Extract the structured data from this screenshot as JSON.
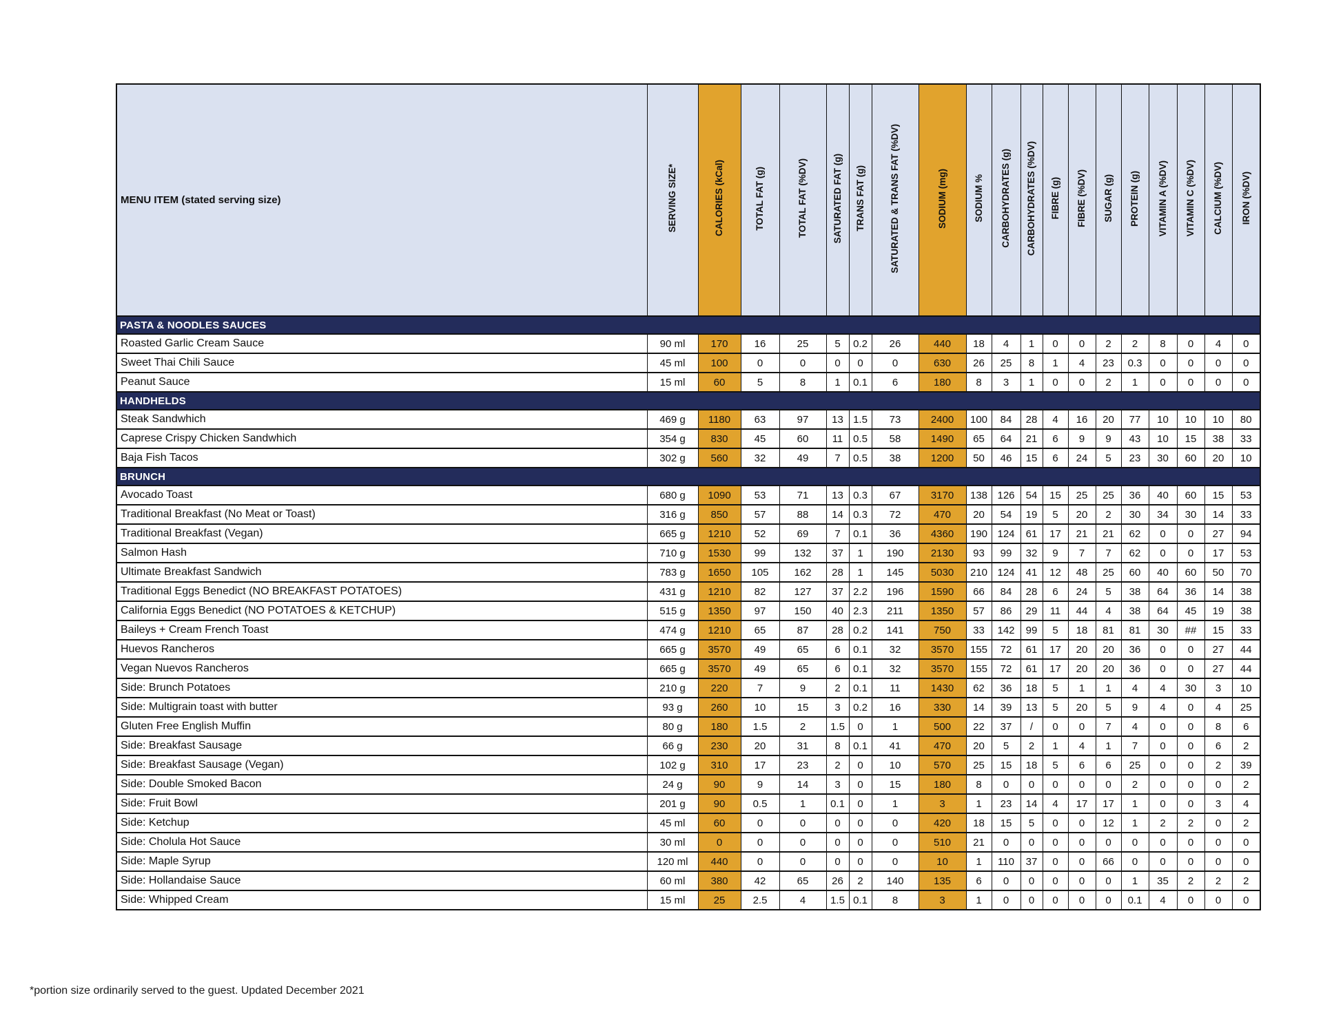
{
  "table": {
    "menu_item_header": "MENU ITEM (stated serving size)",
    "columns": [
      "SERVING SIZE*",
      "CALORIES (kCal)",
      "TOTAL FAT (g)",
      "TOTAL FAT (%DV)",
      "SATURATED FAT (g)",
      "TRANS FAT (g)",
      "SATURATED & TRANS FAT (%DV)",
      "SODIUM (mg)",
      "SODIUM %",
      "CARBOHYDRATES (g)",
      "CARBOHYDRATES (%DV)",
      "FIBRE (g)",
      "FIBRE (%DV)",
      "SUGAR (g)",
      "PROTEIN (g)",
      "VITAMIN A (%DV)",
      "VITAMIN C (%DV)",
      "CALCIUM (%DV)",
      "IRON (%DV)"
    ],
    "sections": [
      {
        "name": "PASTA & NOODLES SAUCES",
        "rows": [
          {
            "item": "Roasted Garlic Cream Sauce",
            "values": [
              "90 ml",
              "170",
              "16",
              "25",
              "5",
              "0.2",
              "26",
              "440",
              "18",
              "4",
              "1",
              "0",
              "0",
              "2",
              "2",
              "8",
              "0",
              "4",
              "0"
            ]
          },
          {
            "item": "Sweet Thai Chili Sauce",
            "values": [
              "45 ml",
              "100",
              "0",
              "0",
              "0",
              "0",
              "0",
              "630",
              "26",
              "25",
              "8",
              "1",
              "4",
              "23",
              "0.3",
              "0",
              "0",
              "0",
              "0"
            ]
          },
          {
            "item": "Peanut Sauce",
            "values": [
              "15 ml",
              "60",
              "5",
              "8",
              "1",
              "0.1",
              "6",
              "180",
              "8",
              "3",
              "1",
              "0",
              "0",
              "2",
              "1",
              "0",
              "0",
              "0",
              "0"
            ]
          }
        ]
      },
      {
        "name": "HANDHELDS",
        "rows": [
          {
            "item": "Steak Sandwhich",
            "values": [
              "469 g",
              "1180",
              "63",
              "97",
              "13",
              "1.5",
              "73",
              "2400",
              "100",
              "84",
              "28",
              "4",
              "16",
              "20",
              "77",
              "10",
              "10",
              "10",
              "80"
            ]
          },
          {
            "item": "Caprese Crispy Chicken Sandwhich",
            "values": [
              "354 g",
              "830",
              "45",
              "60",
              "11",
              "0.5",
              "58",
              "1490",
              "65",
              "64",
              "21",
              "6",
              "9",
              "9",
              "43",
              "10",
              "15",
              "38",
              "33"
            ]
          },
          {
            "item": "Baja Fish Tacos",
            "values": [
              "302 g",
              "560",
              "32",
              "49",
              "7",
              "0.5",
              "38",
              "1200",
              "50",
              "46",
              "15",
              "6",
              "24",
              "5",
              "23",
              "30",
              "60",
              "20",
              "10"
            ]
          }
        ]
      },
      {
        "name": "BRUNCH",
        "rows": [
          {
            "item": "Avocado Toast",
            "values": [
              "680 g",
              "1090",
              "53",
              "71",
              "13",
              "0.3",
              "67",
              "3170",
              "138",
              "126",
              "54",
              "15",
              "25",
              "25",
              "36",
              "40",
              "60",
              "15",
              "53"
            ]
          },
          {
            "item": "Traditional Breakfast (No Meat or Toast)",
            "values": [
              "316 g",
              "850",
              "57",
              "88",
              "14",
              "0.3",
              "72",
              "470",
              "20",
              "54",
              "19",
              "5",
              "20",
              "2",
              "30",
              "34",
              "30",
              "14",
              "33"
            ]
          },
          {
            "item": "Traditional Breakfast (Vegan)",
            "values": [
              "665 g",
              "1210",
              "52",
              "69",
              "7",
              "0.1",
              "36",
              "4360",
              "190",
              "124",
              "61",
              "17",
              "21",
              "21",
              "62",
              "0",
              "0",
              "27",
              "94"
            ]
          },
          {
            "item": "Salmon Hash",
            "values": [
              "710 g",
              "1530",
              "99",
              "132",
              "37",
              "1",
              "190",
              "2130",
              "93",
              "99",
              "32",
              "9",
              "7",
              "7",
              "62",
              "0",
              "0",
              "17",
              "53"
            ]
          },
          {
            "item": "Ultimate Breakfast Sandwich",
            "values": [
              "783 g",
              "1650",
              "105",
              "162",
              "28",
              "1",
              "145",
              "5030",
              "210",
              "124",
              "41",
              "12",
              "48",
              "25",
              "60",
              "40",
              "60",
              "50",
              "70"
            ]
          },
          {
            "item": "Traditional Eggs Benedict   (NO BREAKFAST POTATOES)",
            "values": [
              "431 g",
              "1210",
              "82",
              "127",
              "37",
              "2.2",
              "196",
              "1590",
              "66",
              "84",
              "28",
              "6",
              "24",
              "5",
              "38",
              "64",
              "36",
              "14",
              "38"
            ]
          },
          {
            "item": "California Eggs Benedict  (NO  POTATOES & KETCHUP)",
            "values": [
              "515 g",
              "1350",
              "97",
              "150",
              "40",
              "2.3",
              "211",
              "1350",
              "57",
              "86",
              "29",
              "11",
              "44",
              "4",
              "38",
              "64",
              "45",
              "19",
              "38"
            ]
          },
          {
            "item": "Baileys + Cream French Toast",
            "values": [
              "474 g",
              "1210",
              "65",
              "87",
              "28",
              "0.2",
              "141",
              "750",
              "33",
              "142",
              "99",
              "5",
              "18",
              "81",
              "81",
              "30",
              "##",
              "15",
              "33"
            ]
          },
          {
            "item": "Huevos Rancheros",
            "values": [
              "665 g",
              "3570",
              "49",
              "65",
              "6",
              "0.1",
              "32",
              "3570",
              "155",
              "72",
              "61",
              "17",
              "20",
              "20",
              "36",
              "0",
              "0",
              "27",
              "44"
            ]
          },
          {
            "item": "Vegan Nuevos Rancheros",
            "values": [
              "665 g",
              "3570",
              "49",
              "65",
              "6",
              "0.1",
              "32",
              "3570",
              "155",
              "72",
              "61",
              "17",
              "20",
              "20",
              "36",
              "0",
              "0",
              "27",
              "44"
            ]
          },
          {
            "item": "Side: Brunch Potatoes",
            "values": [
              "210 g",
              "220",
              "7",
              "9",
              "2",
              "0.1",
              "11",
              "1430",
              "62",
              "36",
              "18",
              "5",
              "1",
              "1",
              "4",
              "4",
              "30",
              "3",
              "10"
            ]
          },
          {
            "item": "Side: Multigrain toast with butter",
            "values": [
              "93 g",
              "260",
              "10",
              "15",
              "3",
              "0.2",
              "16",
              "330",
              "14",
              "39",
              "13",
              "5",
              "20",
              "5",
              "9",
              "4",
              "0",
              "4",
              "25"
            ]
          },
          {
            "item": "Gluten Free English Muffin",
            "values": [
              "80 g",
              "180",
              "1.5",
              "2",
              "1.5",
              "0",
              "1",
              "500",
              "22",
              "37",
              "/",
              "0",
              "0",
              "7",
              "4",
              "0",
              "0",
              "8",
              "6"
            ]
          },
          {
            "item": "Side: Breakfast Sausage",
            "values": [
              "66 g",
              "230",
              "20",
              "31",
              "8",
              "0.1",
              "41",
              "470",
              "20",
              "5",
              "2",
              "1",
              "4",
              "1",
              "7",
              "0",
              "0",
              "6",
              "2"
            ]
          },
          {
            "item": "Side: Breakfast Sausage (Vegan)",
            "values": [
              "102 g",
              "310",
              "17",
              "23",
              "2",
              "0",
              "10",
              "570",
              "25",
              "15",
              "18",
              "5",
              "6",
              "6",
              "25",
              "0",
              "0",
              "2",
              "39"
            ]
          },
          {
            "item": "Side: Double Smoked Bacon",
            "values": [
              "24 g",
              "90",
              "9",
              "14",
              "3",
              "0",
              "15",
              "180",
              "8",
              "0",
              "0",
              "0",
              "0",
              "0",
              "2",
              "0",
              "0",
              "0",
              "2"
            ]
          },
          {
            "item": "Side: Fruit Bowl",
            "values": [
              "201 g",
              "90",
              "0.5",
              "1",
              "0.1",
              "0",
              "1",
              "3",
              "1",
              "23",
              "14",
              "4",
              "17",
              "17",
              "1",
              "0",
              "0",
              "3",
              "4"
            ]
          },
          {
            "item": "Side: Ketchup",
            "values": [
              "45 ml",
              "60",
              "0",
              "0",
              "0",
              "0",
              "0",
              "420",
              "18",
              "15",
              "5",
              "0",
              "0",
              "12",
              "1",
              "2",
              "2",
              "0",
              "2"
            ]
          },
          {
            "item": "Side: Cholula Hot Sauce",
            "values": [
              "30 ml",
              "0",
              "0",
              "0",
              "0",
              "0",
              "0",
              "510",
              "21",
              "0",
              "0",
              "0",
              "0",
              "0",
              "0",
              "0",
              "0",
              "0",
              "0"
            ]
          },
          {
            "item": "Side: Maple Syrup",
            "values": [
              "120 ml",
              "440",
              "0",
              "0",
              "0",
              "0",
              "0",
              "10",
              "1",
              "110",
              "37",
              "0",
              "0",
              "66",
              "0",
              "0",
              "0",
              "0",
              "0"
            ]
          },
          {
            "item": "Side: Hollandaise Sauce",
            "values": [
              "60 ml",
              "380",
              "42",
              "65",
              "26",
              "2",
              "140",
              "135",
              "6",
              "0",
              "0",
              "0",
              "0",
              "0",
              "1",
              "35",
              "2",
              "2",
              "2"
            ]
          },
          {
            "item": "Side: Whipped Cream",
            "values": [
              "15 ml",
              "25",
              "2.5",
              "4",
              "1.5",
              "0.1",
              "8",
              "3",
              "1",
              "0",
              "0",
              "0",
              "0",
              "0",
              "0.1",
              "4",
              "0",
              "0",
              "0"
            ]
          }
        ]
      }
    ]
  },
  "footnote": "*portion size ordinarily served to the guest. Updated December 2021",
  "colors": {
    "accent_orange": "#E1A32D",
    "section_navy": "#232C5B",
    "header_blue": "#DAE1F0"
  }
}
